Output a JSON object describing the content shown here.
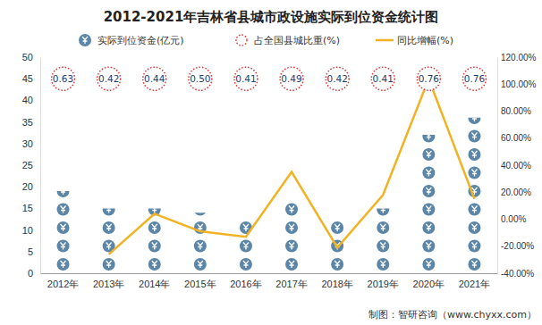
{
  "chart_data": {
    "type": "bar",
    "title": "2012-2021年吉林省县城市政设施实际到位资金统计图",
    "note": "制图：智研咨询（www.chyxx.com）",
    "categories": [
      "2012年",
      "2013年",
      "2014年",
      "2015年",
      "2016年",
      "2017年",
      "2018年",
      "2019年",
      "2020年",
      "2021年"
    ],
    "series": [
      {
        "name": "实际到位资金(亿元)",
        "type": "bar",
        "marker": "pictogram",
        "color": "#5b86a8",
        "values": [
          19,
          15,
          15,
          14,
          12.5,
          17.5,
          13,
          15,
          32,
          36
        ]
      },
      {
        "name": "占全国县城比重(%)",
        "type": "scatter",
        "marker": "circle",
        "color": "#e03030",
        "data_labels": true,
        "values": [
          0.63,
          0.42,
          0.44,
          0.5,
          0.41,
          0.49,
          0.42,
          0.41,
          0.76,
          0.76
        ],
        "value_labels": [
          "0.63",
          "0.42",
          "0.44",
          "0.50",
          "0.41",
          "0.49",
          "0.42",
          "0.41",
          "0.76",
          "0.76"
        ]
      },
      {
        "name": "同比增幅(%)",
        "type": "line",
        "axis": "y2",
        "color": "#f0b323",
        "line_style": "solid",
        "values": [
          null,
          -26,
          4,
          -9,
          -13,
          35,
          -21,
          18,
          104,
          15
        ]
      }
    ],
    "ylim": [
      0,
      50
    ],
    "yticks": [
      0,
      5,
      10,
      15,
      20,
      25,
      30,
      35,
      40,
      45,
      50
    ],
    "y2lim": [
      -40,
      120
    ],
    "y2ticks": [
      {
        "value": -40,
        "label": "-40.00%"
      },
      {
        "value": -20,
        "label": "-20.00%"
      },
      {
        "value": 0,
        "label": "0.00%"
      },
      {
        "value": 20,
        "label": "20.00%"
      },
      {
        "value": 40,
        "label": "40.00%"
      },
      {
        "value": 60,
        "label": "60.00%"
      },
      {
        "value": 80,
        "label": "80.00%"
      },
      {
        "value": 100,
        "label": "100.00%"
      },
      {
        "value": 120,
        "label": "120.00%"
      }
    ],
    "grid": false,
    "legend": "top"
  }
}
